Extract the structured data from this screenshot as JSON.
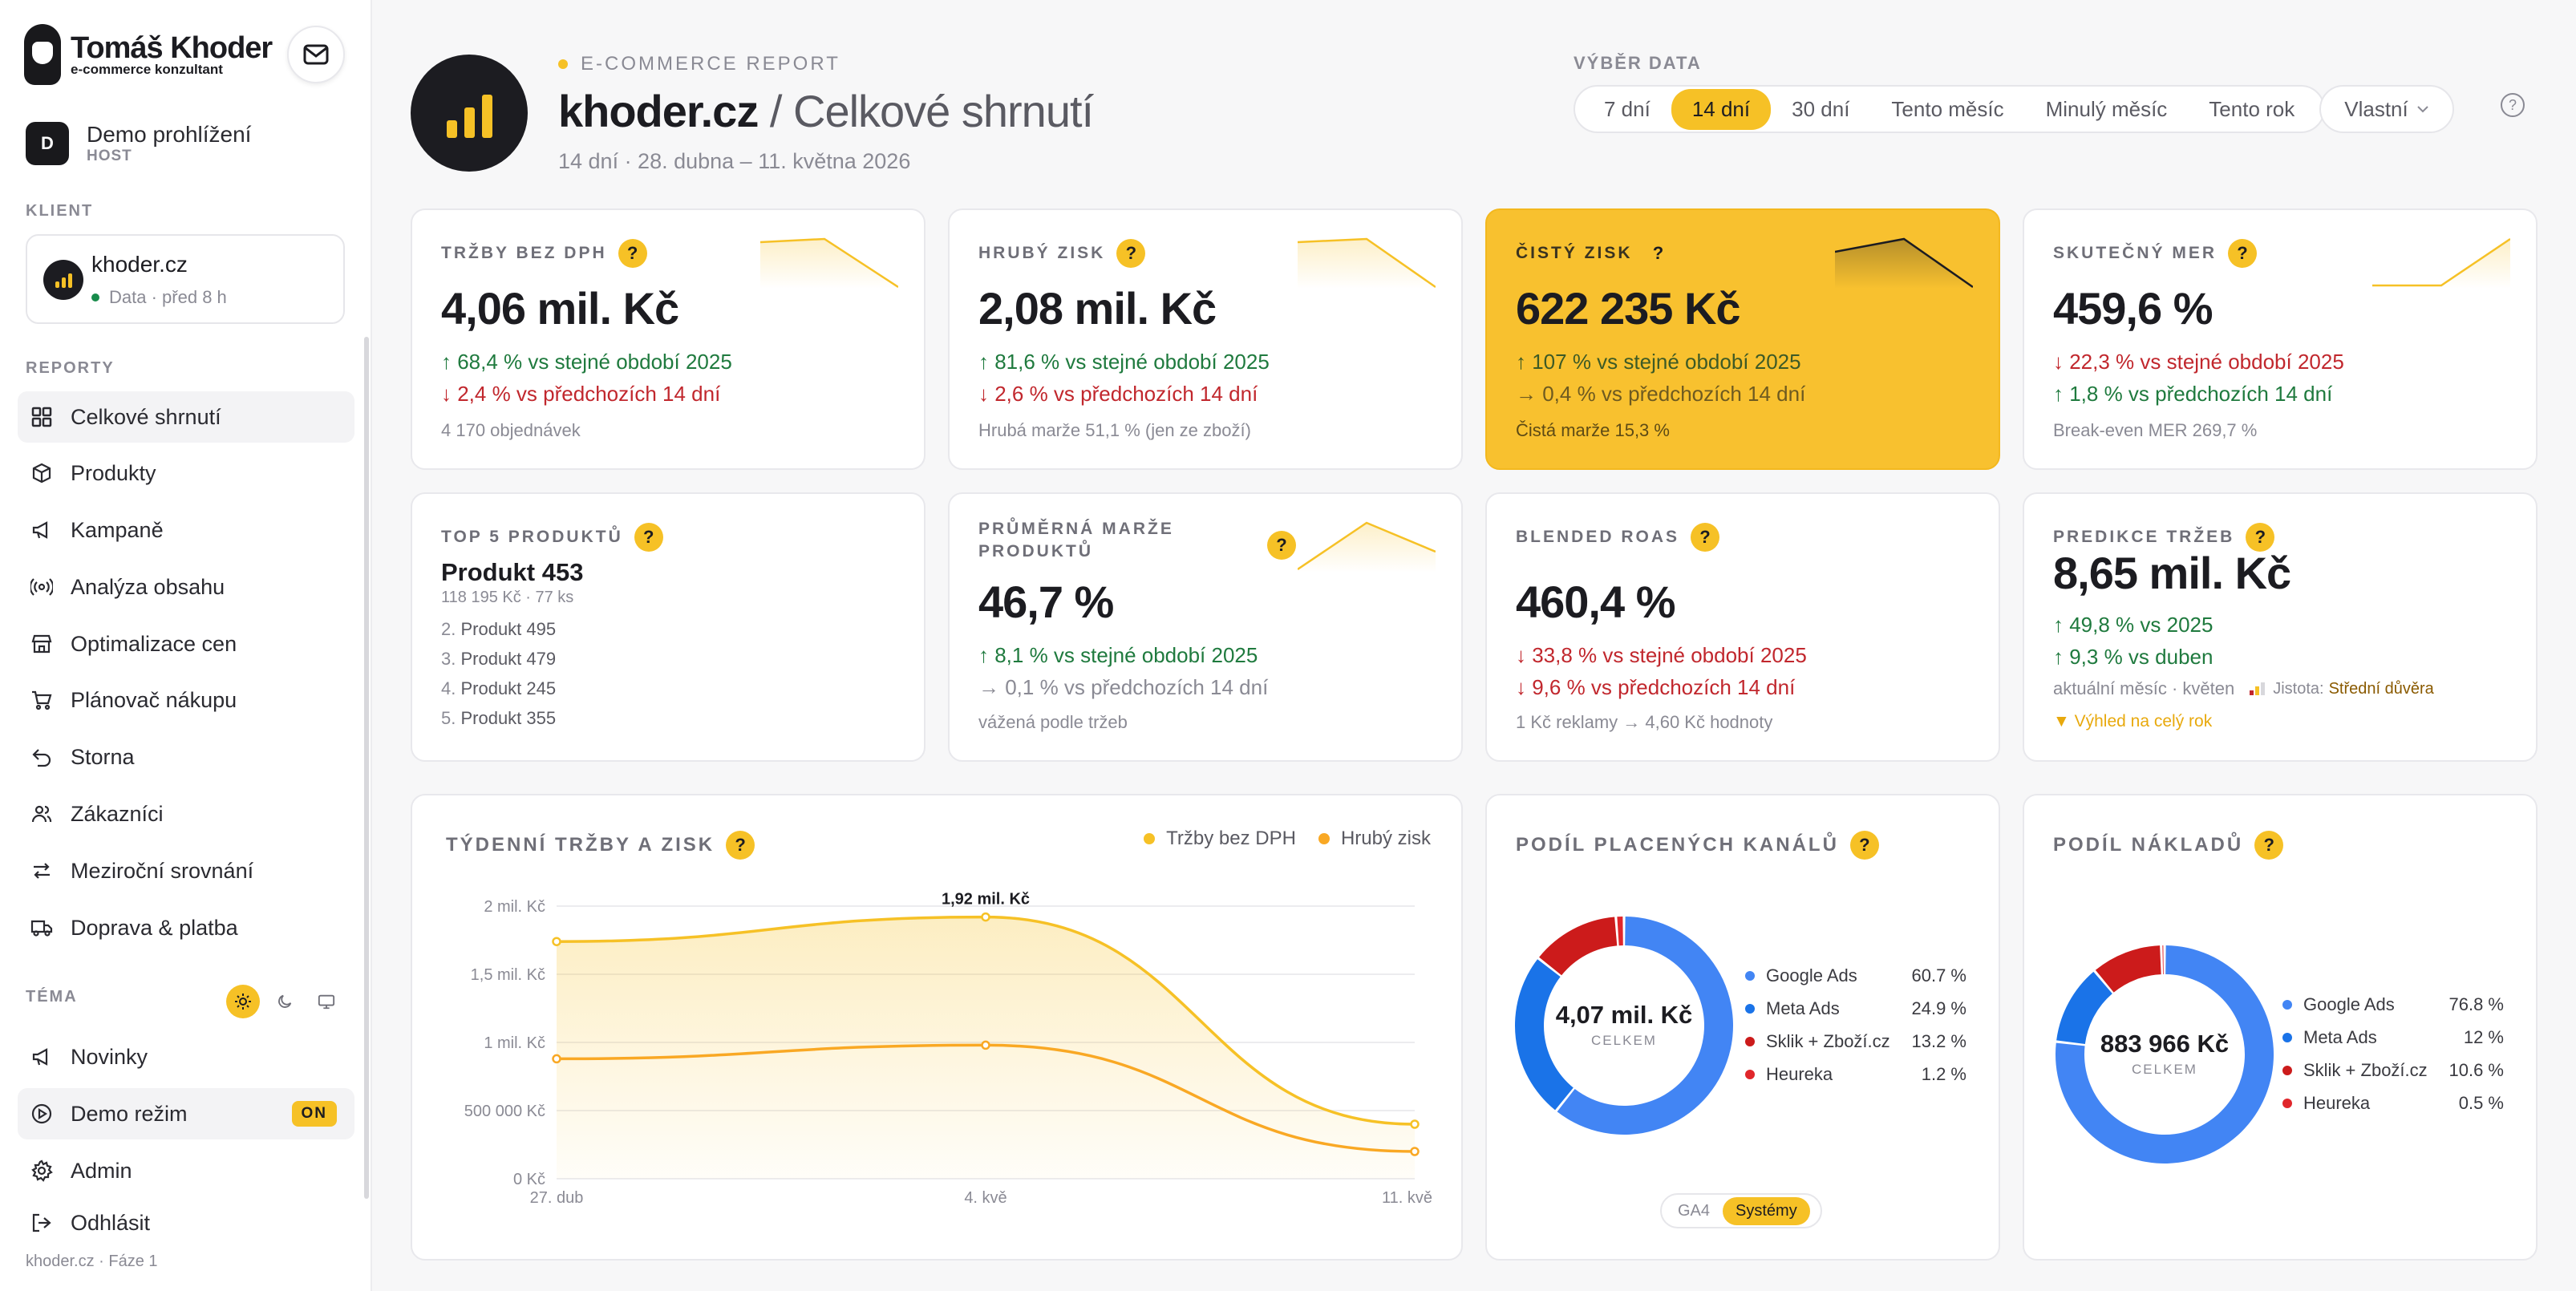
{
  "sidebar": {
    "brand_name": "Tomáš Khoder",
    "brand_sub": "e-commerce konzultant",
    "user": {
      "initial": "D",
      "name": "Demo prohlížení",
      "role": "HOST"
    },
    "client_label": "KLIENT",
    "client": {
      "name": "khoder.cz",
      "status": "Data",
      "age": "· před 8 h"
    },
    "reports_label": "REPORTY",
    "items": [
      {
        "label": "Celkové shrnutí",
        "icon": "grid-icon"
      },
      {
        "label": "Produkty",
        "icon": "box-icon"
      },
      {
        "label": "Kampaně",
        "icon": "megaphone-icon"
      },
      {
        "label": "Analýza obsahu",
        "icon": "broadcast-icon"
      },
      {
        "label": "Optimalizace cen",
        "icon": "store-icon"
      },
      {
        "label": "Plánovač nákupu",
        "icon": "cart-icon"
      },
      {
        "label": "Storna",
        "icon": "undo-icon"
      },
      {
        "label": "Zákazníci",
        "icon": "users-icon"
      },
      {
        "label": "Meziroční srovnání",
        "icon": "swap-icon"
      },
      {
        "label": "Doprava & platba",
        "icon": "truck-icon"
      }
    ],
    "theme_label": "TÉMA",
    "bottom_items": [
      {
        "label": "Novinky",
        "icon": "megaphone-icon"
      },
      {
        "label": "Demo režim",
        "icon": "play-circle-icon",
        "badge": "ON"
      },
      {
        "label": "Admin",
        "icon": "gear-icon"
      },
      {
        "label": "Odhlásit",
        "icon": "logout-icon"
      }
    ],
    "footer": "khoder.cz · Fáze 1"
  },
  "header": {
    "kicker": "E-COMMERCE REPORT",
    "site": "khoder.cz",
    "title": "/ Celkové shrnutí",
    "subtitle": "14 dní · 28. dubna – 11. května 2026",
    "date_label": "VÝBĚR DATA",
    "date_options": [
      "7 dní",
      "14 dní",
      "30 dní",
      "Tento měsíc",
      "Minulý měsíc",
      "Tento rok"
    ],
    "date_selected": "14 dní",
    "date_custom": "Vlastní"
  },
  "kpis": {
    "trzby": {
      "label": "TRŽBY BEZ DPH",
      "value": "4,06 mil. Kč",
      "line1": "↑ 68,4 % vs stejné období 2025",
      "line2": "↓ 2,4 % vs předchozích 14 dní",
      "note": "4 170 objednávek"
    },
    "zisk": {
      "label": "HRUBÝ ZISK",
      "value": "2,08 mil. Kč",
      "line1": "↑ 81,6 % vs stejné období 2025",
      "line2": "↓ 2,6 % vs předchozích 14 dní",
      "note": "Hrubá marže 51,1 % (jen ze zboží)"
    },
    "cisty": {
      "label": "ČISTÝ ZISK",
      "value": "622 235 Kč",
      "line1": "↑ 107 % vs stejné období 2025",
      "line2": "→ 0,4 % vs předchozích 14 dní",
      "note": "Čistá marže 15,3 %"
    },
    "mer": {
      "label": "SKUTEČNÝ MER",
      "value": "459,6 %",
      "line1": "↓ 22,3 % vs stejné období 2025",
      "line2": "↑ 1,8 % vs předchozích 14 dní",
      "note": "Break-even MER 269,7 %"
    },
    "top5": {
      "label": "TOP 5 PRODUKTŮ",
      "name": "Produkt 453",
      "meta": "118 195 Kč · 77 ks",
      "list": [
        "Produkt 495",
        "Produkt 479",
        "Produkt 245",
        "Produkt 355"
      ]
    },
    "marze": {
      "label1": "PRŮMĚRNÁ MARŽE",
      "label2": "PRODUKTŮ",
      "value": "46,7 %",
      "line1": "↑ 8,1 % vs stejné období 2025",
      "line2": "→ 0,1 % vs předchozích 14 dní",
      "note": "vážená podle tržeb"
    },
    "roas": {
      "label": "BLENDED ROAS",
      "value": "460,4 %",
      "line1": "↓ 33,8 % vs stejné období 2025",
      "line2": "↓ 9,6 % vs předchozích 14 dní",
      "note": "1 Kč reklamy → 4,60 Kč hodnoty"
    },
    "predikce": {
      "label": "PREDIKCE TRŽEB",
      "value": "8,65 mil. Kč",
      "line1": "↑ 49,8 % vs 2025",
      "line2": "↑ 9,3 % vs duben",
      "note": "aktuální měsíc · květen",
      "confidence_label": "Jistota:",
      "confidence": "Střední důvěra",
      "outlook": "▼ Výhled na celý rok"
    }
  },
  "weekly": {
    "title": "TÝDENNÍ TRŽBY A ZISK",
    "legend": [
      "Tržby bez DPH",
      "Hrubý zisk"
    ],
    "peak_label": "1,92 mil. Kč"
  },
  "channels": {
    "title": "PODÍL PLACENÝCH KANÁLŮ",
    "center_value": "4,07 mil. Kč",
    "center_label": "CELKEM",
    "items": [
      {
        "name": "Google Ads",
        "pct": "60.7 %"
      },
      {
        "name": "Meta Ads",
        "pct": "24.9 %"
      },
      {
        "name": "Sklik + Zboží.cz",
        "pct": "13.2 %"
      },
      {
        "name": "Heureka",
        "pct": "1.2 %"
      }
    ],
    "toggle": [
      "GA4",
      "Systémy"
    ]
  },
  "costs": {
    "title": "PODÍL NÁKLADŮ",
    "center_value": "883 966 Kč",
    "center_label": "CELKEM",
    "items": [
      {
        "name": "Google Ads",
        "pct": "76.8 %"
      },
      {
        "name": "Meta Ads",
        "pct": "12 %"
      },
      {
        "name": "Sklik + Zboží.cz",
        "pct": "10.6 %"
      },
      {
        "name": "Heureka",
        "pct": "0.5 %"
      }
    ]
  },
  "colors": {
    "accent": "#f6c126",
    "accent2": "#f9a824",
    "google": "#4285f4",
    "meta": "#1a73e8",
    "sklik": "#cc1b1b",
    "heureka": "#e0262b"
  },
  "chart_data": {
    "type": "area",
    "categories": [
      "27. dub",
      "4. kvě",
      "11. kvě"
    ],
    "series": [
      {
        "name": "Tržby bez DPH",
        "values": [
          1740000,
          1920000,
          400000
        ]
      },
      {
        "name": "Hrubý zisk",
        "values": [
          880000,
          980000,
          200000
        ]
      }
    ],
    "yticks": [
      "0 Kč",
      "500 000 Kč",
      "1 mil. Kč",
      "1,5 mil. Kč",
      "2 mil. Kč"
    ],
    "ylim": [
      0,
      2000000
    ],
    "grid": true,
    "legend": "top-right"
  }
}
